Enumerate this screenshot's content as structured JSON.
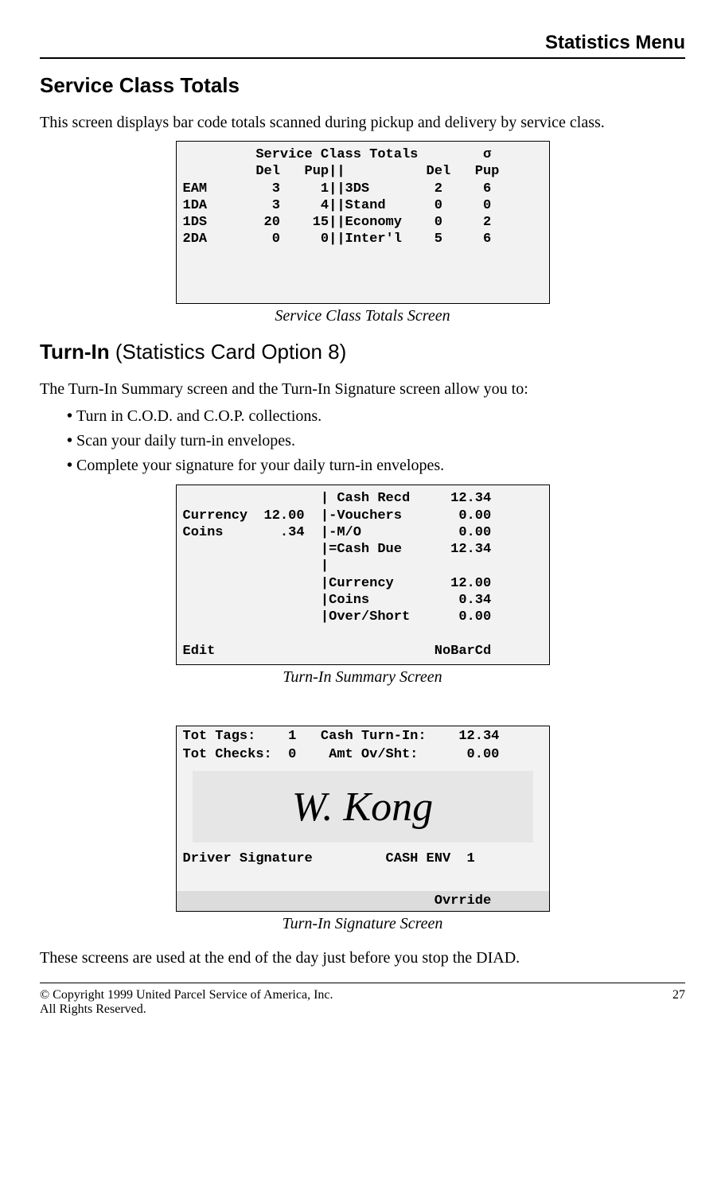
{
  "header": {
    "title": "Statistics Menu"
  },
  "section1": {
    "heading": "Service Class Totals",
    "intro": "This screen displays bar code totals scanned during pickup and delivery by service class.",
    "screen": "         Service Class Totals        σ\n         Del   Pup||          Del   Pup\nEAM        3     1||3DS        2     6\n1DA        3     4||Stand      0     0\n1DS       20    15||Economy    0     2\n2DA        0     0||Inter'l    5     6\n\n\n\n",
    "caption": "Service Class Totals Screen"
  },
  "section2": {
    "heading_bold": "Turn-In",
    "heading_rest": " (Statistics Card Option 8)",
    "intro": "The Turn-In Summary screen and the Turn-In Signature screen allow you to:",
    "bullets": [
      "Turn in C.O.D. and C.O.P. collections.",
      "Scan your daily turn-in envelopes.",
      "Complete your signature for your daily turn-in envelopes."
    ],
    "screen1": "                 | Cash Recd     12.34\nCurrency  12.00  |-Vouchers       0.00\nCoins       .34  |-M/O            0.00\n                 |=Cash Due      12.34\n                 |\n                 |Currency       12.00\n                 |Coins           0.34\n                 |Over/Short      0.00\n\nEdit                           NoBarCd",
    "caption1": "Turn-In Summary Screen",
    "sig_line1": "Tot Tags:    1   Cash Turn-In:    12.34",
    "sig_line2": "Tot Checks:  0    Amt Ov/Sht:      0.00",
    "signature": "W. Kong",
    "sig_line3": "Driver Signature         CASH ENV  1",
    "sig_footer": "                               Ovrride",
    "caption2": "Turn-In Signature Screen",
    "closing": "These screens are used at the end of the day just before you stop the DIAD."
  },
  "footer": {
    "left1": "© Copyright 1999 United Parcel Service of America, Inc.",
    "left2": "All Rights Reserved.",
    "page": "27"
  }
}
